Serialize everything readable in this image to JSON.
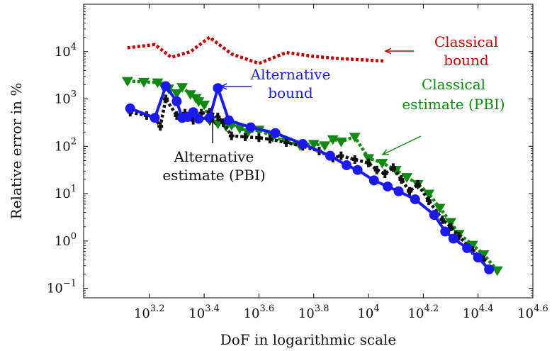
{
  "chart_data": {
    "type": "line",
    "xlabel": "DoF in logarithmic scale",
    "ylabel": "Relative error in %",
    "x_scale": "log10",
    "y_scale": "log10",
    "xlim_log10": [
      2.96,
      4.6
    ],
    "ylim_log10": [
      -1.2,
      5.0
    ],
    "x_ticks": [
      {
        "exp": 3.2,
        "base": "10",
        "sup": "3.2"
      },
      {
        "exp": 3.4,
        "base": "10",
        "sup": "3.4"
      },
      {
        "exp": 3.6,
        "base": "10",
        "sup": "3.6"
      },
      {
        "exp": 3.8,
        "base": "10",
        "sup": "3.8"
      },
      {
        "exp": 4.0,
        "base": "10",
        "sup": "4"
      },
      {
        "exp": 4.2,
        "base": "10",
        "sup": "4.2"
      },
      {
        "exp": 4.4,
        "base": "10",
        "sup": "4.4"
      },
      {
        "exp": 4.6,
        "base": "10",
        "sup": "4.6"
      }
    ],
    "y_ticks": [
      {
        "exp": 4,
        "base": "10",
        "sup": "4"
      },
      {
        "exp": 3,
        "base": "10",
        "sup": "3"
      },
      {
        "exp": 2,
        "base": "10",
        "sup": "2"
      },
      {
        "exp": 1,
        "base": "10",
        "sup": "1"
      },
      {
        "exp": 0,
        "base": "10",
        "sup": "0"
      },
      {
        "exp": -1,
        "base": "10",
        "sup": "−1"
      }
    ],
    "grid": false,
    "legend": "inline annotations",
    "series": [
      {
        "id": "classical_bound",
        "color": "#c00000",
        "style": "dotted",
        "marker": "none",
        "label_lines": [
          "Classical",
          "bound"
        ],
        "points_log10": [
          [
            3.12,
            4.08
          ],
          [
            3.22,
            4.15
          ],
          [
            3.28,
            3.88
          ],
          [
            3.35,
            4.0
          ],
          [
            3.42,
            4.3
          ],
          [
            3.5,
            3.95
          ],
          [
            3.6,
            3.75
          ],
          [
            3.7,
            3.98
          ],
          [
            3.8,
            3.9
          ],
          [
            3.9,
            3.85
          ],
          [
            4.0,
            3.82
          ],
          [
            4.06,
            3.8
          ]
        ]
      },
      {
        "id": "alternative_bound",
        "color": "#1a1aee",
        "style": "solid",
        "marker": "circle",
        "label_lines": [
          "Alternative",
          "bound"
        ],
        "points_log10": [
          [
            3.13,
            2.8
          ],
          [
            3.22,
            2.6
          ],
          [
            3.26,
            3.27
          ],
          [
            3.3,
            2.95
          ],
          [
            3.32,
            2.6
          ],
          [
            3.34,
            2.62
          ],
          [
            3.36,
            2.72
          ],
          [
            3.38,
            2.58
          ],
          [
            3.42,
            2.6
          ],
          [
            3.45,
            3.23
          ],
          [
            3.49,
            2.55
          ],
          [
            3.57,
            2.4
          ],
          [
            3.66,
            2.28
          ],
          [
            3.76,
            2.05
          ],
          [
            3.86,
            1.8
          ],
          [
            3.92,
            1.6
          ],
          [
            3.96,
            1.5
          ],
          [
            4.02,
            1.28
          ],
          [
            4.07,
            1.15
          ],
          [
            4.11,
            1.05
          ],
          [
            4.17,
            0.88
          ],
          [
            4.24,
            0.55
          ],
          [
            4.28,
            0.2
          ],
          [
            4.31,
            0.05
          ],
          [
            4.36,
            -0.15
          ],
          [
            4.4,
            -0.35
          ],
          [
            4.44,
            -0.6
          ]
        ]
      },
      {
        "id": "classical_estimate",
        "color": "#118811",
        "style": "dotted",
        "marker": "triangle-down",
        "label_lines": [
          "Classical",
          "estimate (PBI)"
        ],
        "points_log10": [
          [
            3.12,
            3.38
          ],
          [
            3.18,
            3.36
          ],
          [
            3.23,
            3.35
          ],
          [
            3.25,
            3.28
          ],
          [
            3.27,
            3.22
          ],
          [
            3.3,
            3.12
          ],
          [
            3.32,
            3.25
          ],
          [
            3.35,
            3.1
          ],
          [
            3.37,
            3.02
          ],
          [
            3.38,
            2.95
          ],
          [
            3.4,
            2.88
          ],
          [
            3.42,
            2.55
          ],
          [
            3.45,
            2.48
          ],
          [
            3.48,
            2.42
          ],
          [
            3.5,
            2.45
          ],
          [
            3.53,
            2.38
          ],
          [
            3.56,
            2.3
          ],
          [
            3.6,
            2.35
          ],
          [
            3.65,
            2.2
          ],
          [
            3.7,
            2.1
          ],
          [
            3.75,
            2.02
          ],
          [
            3.8,
            2.05
          ],
          [
            3.84,
            2.02
          ],
          [
            3.87,
            2.15
          ],
          [
            3.9,
            2.1
          ],
          [
            3.95,
            2.2
          ],
          [
            4.0,
            1.75
          ],
          [
            4.05,
            1.65
          ],
          [
            4.1,
            1.5
          ],
          [
            4.14,
            1.35
          ],
          [
            4.18,
            1.2
          ],
          [
            4.22,
            1.0
          ],
          [
            4.26,
            0.7
          ],
          [
            4.3,
            0.4
          ],
          [
            4.33,
            0.15
          ],
          [
            4.38,
            -0.08
          ],
          [
            4.42,
            -0.28
          ],
          [
            4.47,
            -0.62
          ]
        ]
      },
      {
        "id": "alternative_estimate",
        "color": "#111111",
        "style": "dotted",
        "marker": "plus",
        "label_lines": [
          "Alternative",
          "estimate (PBI)"
        ],
        "points_log10": [
          [
            3.13,
            2.72
          ],
          [
            3.19,
            2.65
          ],
          [
            3.22,
            2.6
          ],
          [
            3.24,
            2.42
          ],
          [
            3.26,
            3.0
          ],
          [
            3.3,
            2.65
          ],
          [
            3.33,
            2.7
          ],
          [
            3.36,
            2.55
          ],
          [
            3.39,
            2.7
          ],
          [
            3.42,
            2.72
          ],
          [
            3.45,
            2.62
          ],
          [
            3.47,
            2.5
          ],
          [
            3.5,
            2.22
          ],
          [
            3.55,
            2.2
          ],
          [
            3.6,
            2.18
          ],
          [
            3.64,
            2.15
          ],
          [
            3.7,
            2.08
          ],
          [
            3.76,
            2.0
          ],
          [
            3.82,
            1.9
          ],
          [
            3.87,
            1.75
          ],
          [
            3.9,
            1.8
          ],
          [
            3.95,
            1.72
          ],
          [
            4.0,
            1.65
          ],
          [
            4.03,
            1.5
          ],
          [
            4.06,
            1.42
          ],
          [
            4.09,
            1.55
          ],
          [
            4.12,
            1.3
          ],
          [
            4.15,
            1.05
          ],
          [
            4.18,
            1.2
          ],
          [
            4.22,
            0.85
          ],
          [
            4.27,
            0.45
          ],
          [
            4.3,
            0.3
          ],
          [
            4.33,
            0.1
          ],
          [
            4.38,
            -0.2
          ],
          [
            4.42,
            -0.4
          ]
        ]
      }
    ],
    "annotations": [
      {
        "series": "classical_bound",
        "lines": [
          "Classical",
          "bound"
        ],
        "color": "#c00000"
      },
      {
        "series": "alternative_bound",
        "lines": [
          "Alternative",
          "bound"
        ],
        "color": "#1a1aee"
      },
      {
        "series": "classical_estimate",
        "lines": [
          "Classical",
          "estimate (PBI)"
        ],
        "color": "#118811"
      },
      {
        "series": "alternative_estimate",
        "lines": [
          "Alternative",
          "estimate (PBI)"
        ],
        "color": "#111111"
      }
    ]
  }
}
